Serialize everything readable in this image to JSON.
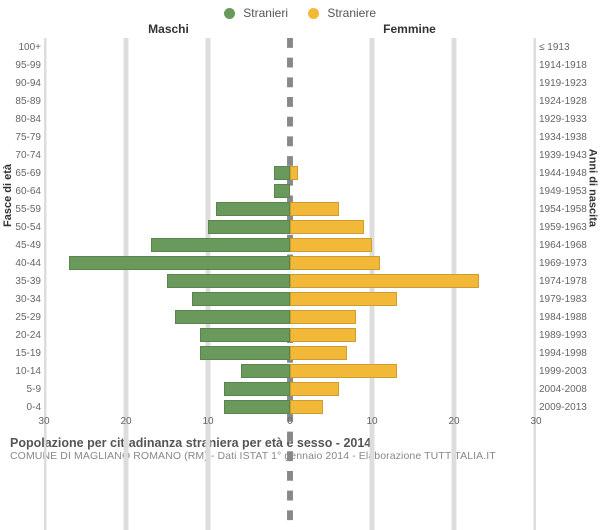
{
  "legend": [
    {
      "label": "Stranieri",
      "color": "#6a9a5b"
    },
    {
      "label": "Straniere",
      "color": "#f2b838"
    }
  ],
  "headers": {
    "left": "Maschi",
    "right": "Femmine"
  },
  "yaxis": {
    "left_title": "Fasce di età",
    "right_title": "Anni di nascita"
  },
  "max": 30,
  "xticks": [
    30,
    20,
    10,
    0,
    10,
    20,
    30
  ],
  "colors": {
    "m": "#6a9a5b",
    "f": "#f2b838",
    "grid": "#dddddd",
    "axis": "#888888",
    "bg": "#ffffff"
  },
  "rows": [
    {
      "age": "100+",
      "birth": "≤ 1913",
      "m": 0,
      "f": 0
    },
    {
      "age": "95-99",
      "birth": "1914-1918",
      "m": 0,
      "f": 0
    },
    {
      "age": "90-94",
      "birth": "1919-1923",
      "m": 0,
      "f": 0
    },
    {
      "age": "85-89",
      "birth": "1924-1928",
      "m": 0,
      "f": 0
    },
    {
      "age": "80-84",
      "birth": "1929-1933",
      "m": 0,
      "f": 0
    },
    {
      "age": "75-79",
      "birth": "1934-1938",
      "m": 0,
      "f": 0
    },
    {
      "age": "70-74",
      "birth": "1939-1943",
      "m": 0,
      "f": 0
    },
    {
      "age": "65-69",
      "birth": "1944-1948",
      "m": 2,
      "f": 1
    },
    {
      "age": "60-64",
      "birth": "1949-1953",
      "m": 2,
      "f": 0
    },
    {
      "age": "55-59",
      "birth": "1954-1958",
      "m": 9,
      "f": 6
    },
    {
      "age": "50-54",
      "birth": "1959-1963",
      "m": 10,
      "f": 9
    },
    {
      "age": "45-49",
      "birth": "1964-1968",
      "m": 17,
      "f": 10
    },
    {
      "age": "40-44",
      "birth": "1969-1973",
      "m": 27,
      "f": 11
    },
    {
      "age": "35-39",
      "birth": "1974-1978",
      "m": 15,
      "f": 23
    },
    {
      "age": "30-34",
      "birth": "1979-1983",
      "m": 12,
      "f": 13
    },
    {
      "age": "25-29",
      "birth": "1984-1988",
      "m": 14,
      "f": 8
    },
    {
      "age": "20-24",
      "birth": "1989-1993",
      "m": 11,
      "f": 8
    },
    {
      "age": "15-19",
      "birth": "1994-1998",
      "m": 11,
      "f": 7
    },
    {
      "age": "10-14",
      "birth": "1999-2003",
      "m": 6,
      "f": 13
    },
    {
      "age": "5-9",
      "birth": "2004-2008",
      "m": 8,
      "f": 6
    },
    {
      "age": "0-4",
      "birth": "2009-2013",
      "m": 8,
      "f": 4
    }
  ],
  "footer": {
    "t1": "Popolazione per cittadinanza straniera per età e sesso - 2014",
    "t2": "COMUNE DI MAGLIANO ROMANO (RM) - Dati ISTAT 1° gennaio 2014 - Elaborazione TUTTITALIA.IT"
  }
}
